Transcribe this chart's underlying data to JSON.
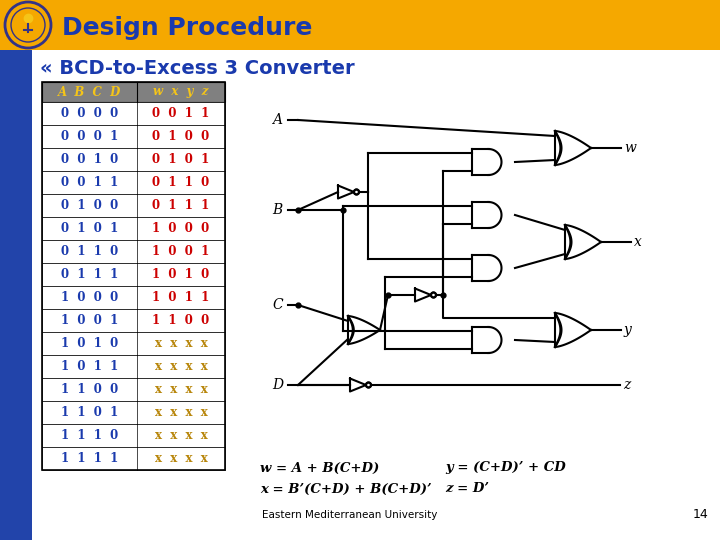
{
  "title": "Design Procedure",
  "title_color": "#1a3aad",
  "header_bg": "#f5a800",
  "slide_bg": "#ffffff",
  "subtitle": "« BCD-to-Excess 3 Converter",
  "subtitle_color": "#1a3aad",
  "table_header_bg": "#808080",
  "table_header_fg": "#f5c518",
  "table_abcd_color": "#1a3aad",
  "table_wxyz_valid_color": "#cc0000",
  "table_wxyz_x_color": "#b8860b",
  "abcd_rows": [
    [
      0,
      0,
      0,
      0
    ],
    [
      0,
      0,
      0,
      1
    ],
    [
      0,
      0,
      1,
      0
    ],
    [
      0,
      0,
      1,
      1
    ],
    [
      0,
      1,
      0,
      0
    ],
    [
      0,
      1,
      0,
      1
    ],
    [
      0,
      1,
      1,
      0
    ],
    [
      0,
      1,
      1,
      1
    ],
    [
      1,
      0,
      0,
      0
    ],
    [
      1,
      0,
      0,
      1
    ],
    [
      1,
      0,
      1,
      0
    ],
    [
      1,
      0,
      1,
      1
    ],
    [
      1,
      1,
      0,
      0
    ],
    [
      1,
      1,
      0,
      1
    ],
    [
      1,
      1,
      1,
      0
    ],
    [
      1,
      1,
      1,
      1
    ]
  ],
  "wxyz_rows": [
    [
      0,
      0,
      1,
      1
    ],
    [
      0,
      1,
      0,
      0
    ],
    [
      0,
      1,
      0,
      1
    ],
    [
      0,
      1,
      1,
      0
    ],
    [
      0,
      1,
      1,
      1
    ],
    [
      1,
      0,
      0,
      0
    ],
    [
      1,
      0,
      0,
      1
    ],
    [
      1,
      0,
      1,
      0
    ],
    [
      1,
      0,
      1,
      1
    ],
    [
      1,
      1,
      0,
      0
    ],
    [
      "x",
      "x",
      "x",
      "x"
    ],
    [
      "x",
      "x",
      "x",
      "x"
    ],
    [
      "x",
      "x",
      "x",
      "x"
    ],
    [
      "x",
      "x",
      "x",
      "x"
    ],
    [
      "x",
      "x",
      "x",
      "x"
    ],
    [
      "x",
      "x",
      "x",
      "x"
    ]
  ],
  "footer": "Eastern Mediterranean University",
  "page_num": "14",
  "blue_sidebar_color": "#2244aa",
  "gate_lw": 1.5
}
